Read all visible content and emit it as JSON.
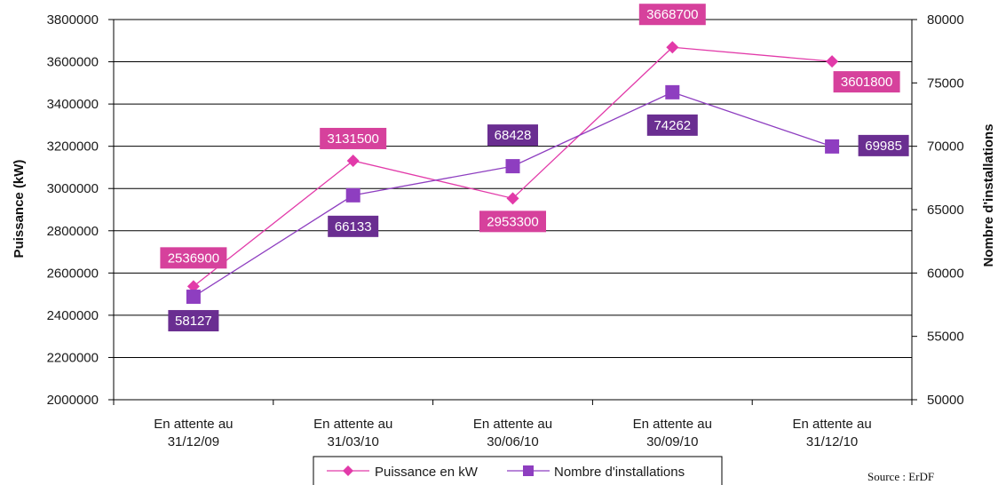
{
  "chart_data": {
    "type": "line",
    "categories": [
      [
        "En attente au",
        "31/12/09"
      ],
      [
        "En attente au",
        "31/03/10"
      ],
      [
        "En attente au",
        "30/06/10"
      ],
      [
        "En attente au",
        "30/09/10"
      ],
      [
        "En attente au",
        "31/12/10"
      ]
    ],
    "series": [
      {
        "name": "Puissance en kW",
        "axis": "left",
        "marker": "diamond",
        "color": "#e23aa9",
        "label_color": "#d6419c",
        "values": [
          2536900,
          3131500,
          2953300,
          3668700,
          3601800
        ],
        "labels": [
          "2536900",
          "3131500",
          "2953300",
          "3668700",
          "3601800"
        ]
      },
      {
        "name": "Nombre d'installations",
        "axis": "right",
        "marker": "square",
        "color": "#8e3ec0",
        "label_color": "#6a2e91",
        "values": [
          58127,
          66133,
          68428,
          74262,
          69985
        ],
        "labels": [
          "58127",
          "66133",
          "68428",
          "74262",
          "69985"
        ]
      }
    ],
    "ylabel": "Puissance (kW)",
    "y2label": "Nombre d'installations",
    "ylim": [
      2000000,
      3800000
    ],
    "y_ticks": [
      "2000000",
      "2200000",
      "2400000",
      "2600000",
      "2800000",
      "3000000",
      "3200000",
      "3400000",
      "3600000",
      "3800000"
    ],
    "y2lim": [
      50000,
      80000
    ],
    "y2_ticks": [
      "50000",
      "55000",
      "60000",
      "65000",
      "70000",
      "75000",
      "80000"
    ],
    "grid": true,
    "legend_position": "bottom"
  },
  "source": "Source : ErDF"
}
